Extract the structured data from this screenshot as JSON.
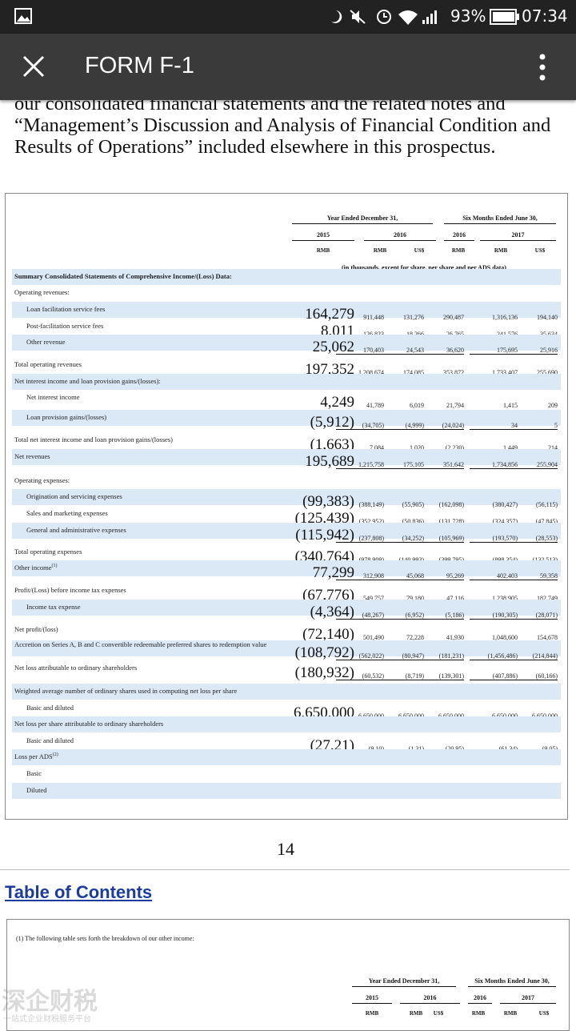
{
  "status_bar": {
    "battery": "93%",
    "time": "07:34"
  },
  "app_bar": {
    "title": "FORM F-1"
  },
  "paragraph": "our consolidated financial statements and the related notes and “Management’s Discussion and Analysis of Financial Condition and Results of Operations” included elsewhere in this prospectus.",
  "table": {
    "header": {
      "groups": [
        "Year Ended December 31,",
        "Six Months Ended June 30,"
      ],
      "years": [
        "2015",
        "2016",
        "2016",
        "2017"
      ],
      "currencies": [
        "RMB",
        "RMB",
        "US$",
        "RMB",
        "RMB",
        "US$"
      ],
      "note": "(in thousands, except for share, per share and per ADS data)"
    },
    "rows": [
      {
        "label": "Summary Consolidated Statements of Comprehensive Income/(Loss) Data:",
        "level": 0,
        "bold": true
      },
      {
        "label": "Operating revenues:",
        "level": 0
      },
      {
        "label": "Loan facilitation service fees",
        "level": 1,
        "values": [
          "164,279",
          "911,448",
          "131,276",
          "290,487",
          "1,316,136",
          "194,140"
        ]
      },
      {
        "label": "Post-facilitation service fees",
        "level": 1,
        "values": [
          "8,011",
          "126,823",
          "18,266",
          "26,765",
          "241,576",
          "35,634"
        ]
      },
      {
        "label": "Other revenue",
        "level": 1,
        "values": [
          "25,062",
          "170,403",
          "24,543",
          "36,620",
          "175,695",
          "25,916"
        ]
      },
      {
        "label": "Total operating revenues",
        "level": 0,
        "values": [
          "197,352",
          "1,208,674",
          "174,085",
          "353,872",
          "1,733,407",
          "255,690"
        ]
      },
      {
        "label": "Net interest income and loan provision gains/(losses):",
        "level": 0
      },
      {
        "label": "Net interest income",
        "level": 1,
        "values": [
          "4,249",
          "41,789",
          "6,019",
          "21,794",
          "1,415",
          "209"
        ]
      },
      {
        "label": "Loan provision gains/(losses)",
        "level": 1,
        "values": [
          "(5,912)",
          "(34,705)",
          "(4,999)",
          "(24,024)",
          "34",
          "5"
        ]
      },
      {
        "label": "Total net interest income and loan provision gains/(losses)",
        "level": 0,
        "values": [
          "(1,663)",
          "7,084",
          "1,020",
          "(2,230)",
          "1,449",
          "214"
        ]
      },
      {
        "label": "Net revenues",
        "level": 0,
        "values": [
          "195,689",
          "1,215,758",
          "175,105",
          "351,642",
          "1,734,856",
          "255,904"
        ]
      },
      {
        "label": "Operating expenses:",
        "level": 0
      },
      {
        "label": "Origination and servicing expenses",
        "level": 1,
        "values": [
          "(99,383)",
          "(388,149)",
          "(55,905)",
          "(162,098)",
          "(380,427)",
          "(56,115)"
        ]
      },
      {
        "label": "Sales and marketing expenses",
        "level": 1,
        "values": [
          "(125,439)",
          "(352,952)",
          "(50,836)",
          "(131,728)",
          "(324,357)",
          "(47,845)"
        ]
      },
      {
        "label": "General and administrative expenses",
        "level": 1,
        "values": [
          "(115,942)",
          "(237,808)",
          "(34,252)",
          "(105,969)",
          "(193,570)",
          "(28,553)"
        ]
      },
      {
        "label": "Total operating expenses",
        "level": 0,
        "values": [
          "(340,764)",
          "(978,909)",
          "(140,993)",
          "(399,795)",
          "(898,354)",
          "(132,513)"
        ]
      },
      {
        "label": "Other income",
        "note_ref": "(1)",
        "level": 0,
        "values": [
          "77,299",
          "312,908",
          "45,068",
          "95,269",
          "402,403",
          "59,358"
        ]
      },
      {
        "label": "Profit/(Loss) before income tax expenses",
        "level": 0,
        "values": [
          "(67,776)",
          "549,757",
          "79,180",
          "47,116",
          "1,238,905",
          "182,749"
        ]
      },
      {
        "label": "Income tax expense",
        "level": 1,
        "values": [
          "(4,364)",
          "(48,267)",
          "(6,952)",
          "(5,186)",
          "(190,305)",
          "(28,071)"
        ]
      },
      {
        "label": "Net profit/(loss)",
        "level": 0,
        "values": [
          "(72,140)",
          "501,490",
          "72,228",
          "41,930",
          "1,048,600",
          "154,678"
        ]
      },
      {
        "label": "Accretion on Series A, B and C convertible redeemable preferred shares to redemption value",
        "level": 0,
        "values": [
          "(108,792)",
          "(562,022)",
          "(80,947)",
          "(181,231)",
          "(1,456,486)",
          "(214,844)"
        ]
      },
      {
        "label": "Net loss attributable to ordinary shareholders",
        "level": 0,
        "values": [
          "(180,932)",
          "(60,532)",
          "(8,719)",
          "(139,301)",
          "(407,886)",
          "(60,166)"
        ]
      },
      {
        "label": "Weighted average number of ordinary shares used in computing net loss per share",
        "level": 0
      },
      {
        "label": "Basic and diluted",
        "level": 1,
        "values": [
          "6,650,000",
          "6,650,000",
          "6,650,000",
          "6,650,000",
          "6,650,000",
          "6,650,000"
        ]
      },
      {
        "label": "Net loss per share attributable to ordinary shareholders",
        "level": 0
      },
      {
        "label": "Basic and diluted",
        "level": 1,
        "values": [
          "(27.21)",
          "(9.10)",
          "(1.31)",
          "(20.95)",
          "(61.34)",
          "(9.05)"
        ]
      },
      {
        "label": "Loss per ADS",
        "note_ref": "(2)",
        "level": 0
      },
      {
        "label": "Basic",
        "level": 1
      },
      {
        "label": "Diluted",
        "level": 1
      }
    ]
  },
  "page_number": "14",
  "toc_link": "Table of Contents",
  "footnote": {
    "text": "(1)   The following table sets forth the breakdown of our other income:",
    "header": {
      "groups": [
        "Year Ended December 31,",
        "Six Months Ended June 30,"
      ],
      "years": [
        "2015",
        "2016",
        "2016",
        "2017"
      ],
      "currencies": [
        "RMB",
        "RMB",
        "US$",
        "RMB",
        "RMB",
        "US$"
      ]
    }
  },
  "watermark": {
    "title": "深企财税",
    "subtitle": "一站式企业财税服务平台"
  }
}
